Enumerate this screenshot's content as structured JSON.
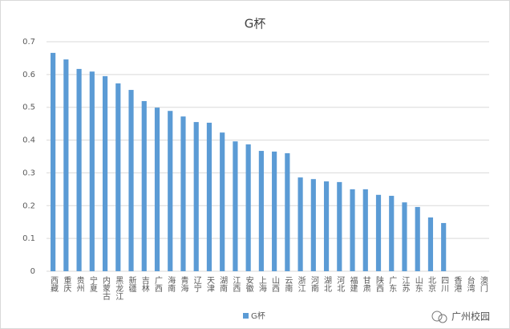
{
  "chart_data": {
    "type": "bar",
    "title": "G杯",
    "categories": [
      "西藏",
      "重庆",
      "贵州",
      "宁夏",
      "内蒙古",
      "黑龙江",
      "新疆",
      "吉林",
      "广西",
      "海南",
      "青海",
      "辽宁",
      "天津",
      "湖南",
      "江西",
      "安徽",
      "上海",
      "山西",
      "云南",
      "浙江",
      "河南",
      "湖北",
      "河北",
      "福建",
      "甘肃",
      "陕西",
      "广东",
      "江苏",
      "山东",
      "北京",
      "四川",
      "香港",
      "台湾",
      "澳门"
    ],
    "series": [
      {
        "name": "G杯",
        "color": "#5b9bd5",
        "values": [
          0.666,
          0.646,
          0.617,
          0.609,
          0.595,
          0.573,
          0.553,
          0.519,
          0.499,
          0.489,
          0.472,
          0.455,
          0.453,
          0.423,
          0.396,
          0.387,
          0.367,
          0.365,
          0.36,
          0.286,
          0.281,
          0.274,
          0.272,
          0.25,
          0.25,
          0.233,
          0.23,
          0.21,
          0.196,
          0.164,
          0.147,
          null,
          null,
          null
        ]
      }
    ],
    "ylim": [
      0,
      0.7
    ],
    "yticks": [
      0,
      0.1,
      0.2,
      0.3,
      0.4,
      0.5,
      0.6,
      0.7
    ],
    "grid": true,
    "legend": "bottom",
    "watermark": "广州校园"
  }
}
